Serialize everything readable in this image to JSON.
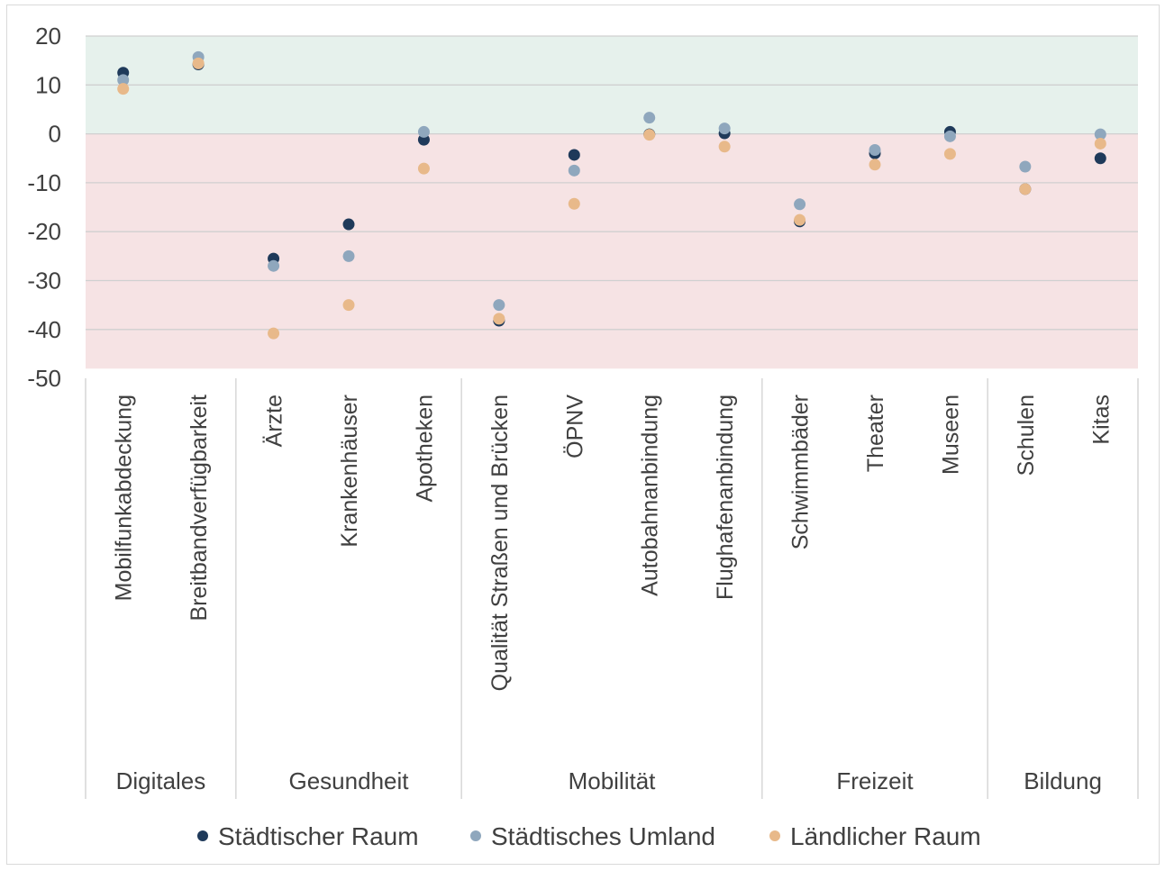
{
  "chart_data": {
    "type": "scatter",
    "title": "",
    "ylim": [
      -50,
      20
    ],
    "yticks": [
      20,
      10,
      0,
      -10,
      -20,
      -30,
      -40,
      -50
    ],
    "grid": true,
    "legend_position": "bottom",
    "background_bands": [
      {
        "from": 0,
        "to": 20,
        "color": "#e6f1ec"
      },
      {
        "from": -48,
        "to": 0,
        "color": "#f6e3e4"
      }
    ],
    "groups": [
      {
        "name": "Digitales",
        "categories": [
          "Mobilfunkabdeckung",
          "Breitbandverfügbarkeit"
        ]
      },
      {
        "name": "Gesundheit",
        "categories": [
          "Ärzte",
          "Krankenhäuser",
          "Apotheken"
        ]
      },
      {
        "name": "Mobilität",
        "categories": [
          "Qualität Straßen und Brücken",
          "ÖPNV",
          "Autobahnanbindung",
          "Flughafenanbindung"
        ]
      },
      {
        "name": "Freizeit",
        "categories": [
          "Schwimmbäder",
          "Theater",
          "Museen"
        ]
      },
      {
        "name": "Bildung",
        "categories": [
          "Schulen",
          "Kitas"
        ]
      }
    ],
    "categories": [
      "Mobilfunkabdeckung",
      "Breitbandverfügbarkeit",
      "Ärzte",
      "Krankenhäuser",
      "Apotheken",
      "Qualität Straßen und Brücken",
      "ÖPNV",
      "Autobahnanbindung",
      "Flughafenanbindung",
      "Schwimmbäder",
      "Theater",
      "Museen",
      "Schulen",
      "Kitas"
    ],
    "series": [
      {
        "name": "Städtischer Raum",
        "color": "#1f3a5a",
        "values": [
          12.5,
          14.2,
          -25.5,
          -18.5,
          -1.2,
          -38.2,
          -4.3,
          -0.1,
          0.1,
          -17.9,
          -4.0,
          0.4,
          -11.3,
          -5.0
        ]
      },
      {
        "name": "Städtisches Umland",
        "color": "#8fa7bd",
        "values": [
          11.0,
          15.7,
          -27.0,
          -25.0,
          0.4,
          -35.0,
          -7.5,
          3.3,
          1.1,
          -14.4,
          -3.3,
          -0.5,
          -6.7,
          -0.1
        ]
      },
      {
        "name": "Ländlicher Raum",
        "color": "#e8b98a",
        "values": [
          9.2,
          14.4,
          -40.8,
          -35.0,
          -7.1,
          -37.8,
          -14.3,
          -0.2,
          -2.6,
          -17.6,
          -6.3,
          -4.1,
          -11.3,
          -2.0
        ]
      }
    ]
  }
}
